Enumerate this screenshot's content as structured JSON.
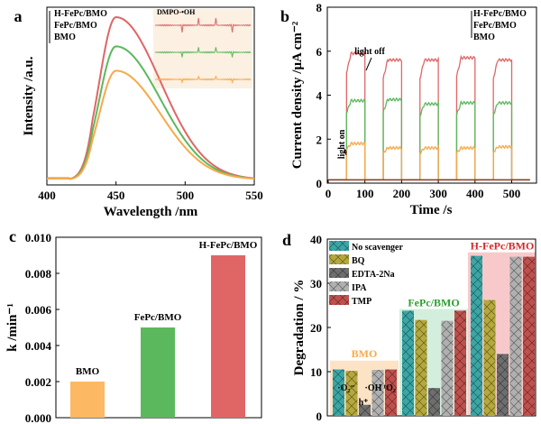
{
  "chart_data": [
    {
      "panel": "a",
      "type": "line",
      "xlabel": "Wavelength /nm",
      "ylabel": "Intensity /a.u.",
      "xlim": [
        400,
        550
      ],
      "xticks": [
        400,
        450,
        500,
        550
      ],
      "legend": [
        "H-FePc/BMO",
        "FePc/BMO",
        "BMO"
      ],
      "series": [
        {
          "name": "H-FePc/BMO",
          "peak_x": 450,
          "peak_rel": 1.0,
          "color": "#e06666"
        },
        {
          "name": "FePc/BMO",
          "peak_x": 450,
          "peak_rel": 0.82,
          "color": "#5cb85c"
        },
        {
          "name": "BMO",
          "peak_x": 450,
          "peak_rel": 0.67,
          "color": "#f7a94b"
        }
      ],
      "inset_label": "DMPO-•OH"
    },
    {
      "panel": "b",
      "type": "line",
      "xlabel": "Time /s",
      "ylabel": "Current density /μA cm⁻²",
      "xlim": [
        0,
        550
      ],
      "ylim": [
        0,
        8
      ],
      "xticks": [
        0,
        100,
        200,
        300,
        400,
        500
      ],
      "yticks": [
        0,
        2,
        4,
        6,
        8
      ],
      "legend": [
        "H-FePc/BMO",
        "FePc/BMO",
        "BMO"
      ],
      "annotations": [
        "light on",
        "light off"
      ],
      "on_intervals": [
        [
          50,
          100
        ],
        [
          150,
          200
        ],
        [
          250,
          300
        ],
        [
          350,
          400
        ],
        [
          450,
          500
        ]
      ],
      "baseline": 0.15,
      "series": [
        {
          "name": "H-FePc/BMO",
          "on_values": [
            5.9,
            5.6,
            5.6,
            5.7,
            5.6
          ],
          "color": "#e06666"
        },
        {
          "name": "FePc/BMO",
          "on_values": [
            3.75,
            3.8,
            3.6,
            3.65,
            3.65
          ],
          "color": "#5cb85c"
        },
        {
          "name": "BMO",
          "on_values": [
            1.8,
            1.6,
            1.6,
            1.6,
            1.65
          ],
          "color": "#f7a94b"
        }
      ]
    },
    {
      "panel": "c",
      "type": "bar",
      "ylabel": "k /min⁻¹",
      "ylim": [
        0,
        0.01
      ],
      "yticks": [
        "0.000",
        "0.002",
        "0.004",
        "0.006",
        "0.008",
        "0.010"
      ],
      "categories": [
        "BMO",
        "FePc/BMO",
        "H-FePc/BMO"
      ],
      "values": [
        0.002,
        0.005,
        0.009
      ],
      "colors": [
        "#fdb863",
        "#5cb85c",
        "#e06666"
      ]
    },
    {
      "panel": "d",
      "type": "bar",
      "ylabel": "Degradation / %",
      "ylim": [
        0,
        40
      ],
      "yticks": [
        0,
        10,
        20,
        30,
        40
      ],
      "groups": [
        "BMO",
        "FePc/BMO",
        "H-FePc/BMO"
      ],
      "group_colors": [
        "#f7a94b",
        "#2ca02c",
        "#d62728"
      ],
      "legend": [
        "No scavenger",
        "BQ",
        "EDTA-2Na",
        "IPA",
        "TMP"
      ],
      "series_colors": [
        "#3aa6a6",
        "#b5a83c",
        "#6e6e6e",
        "#b0b0b0",
        "#c0504d"
      ],
      "values": [
        [
          10.5,
          10.2,
          2.5,
          10.4,
          10.5
        ],
        [
          23.8,
          21.7,
          6.3,
          21.5,
          23.8
        ],
        [
          36.2,
          26.2,
          14,
          36,
          36
        ]
      ],
      "species_labels": [
        "·O₂⁻",
        "h⁺",
        "·OH",
        "¹O₂"
      ]
    }
  ]
}
